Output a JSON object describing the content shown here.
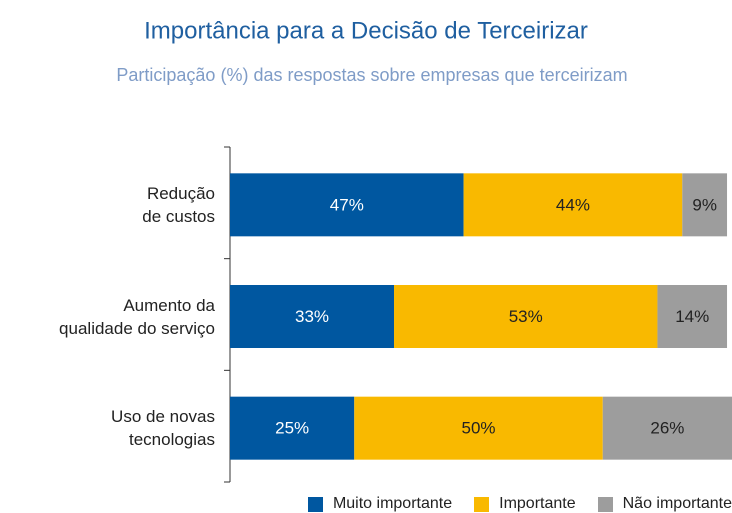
{
  "chart_data": {
    "type": "stacked_bar_horizontal",
    "title": "Importância para a Decisão de Terceirizar",
    "subtitle": "Participação (%) das respostas sobre empresas que terceirizam",
    "categories": [
      "Redução\nde custos",
      "Aumento da\nqualidade do serviço",
      "Uso de novas\ntecnologias"
    ],
    "series": [
      {
        "name": "Muito importante",
        "color": "#0057a0",
        "values": [
          47,
          33,
          25
        ],
        "value_labels": [
          "47%",
          "33%",
          "25%"
        ]
      },
      {
        "name": "Importante",
        "color": "#f9b900",
        "values": [
          44,
          53,
          50
        ],
        "value_labels": [
          "44%",
          "53%",
          "50%"
        ]
      },
      {
        "name": "Não importante",
        "color": "#9d9d9d",
        "values": [
          9,
          14,
          26
        ],
        "value_labels": [
          "9%",
          "14%",
          "26%"
        ]
      }
    ],
    "legend": "bottom-right"
  }
}
